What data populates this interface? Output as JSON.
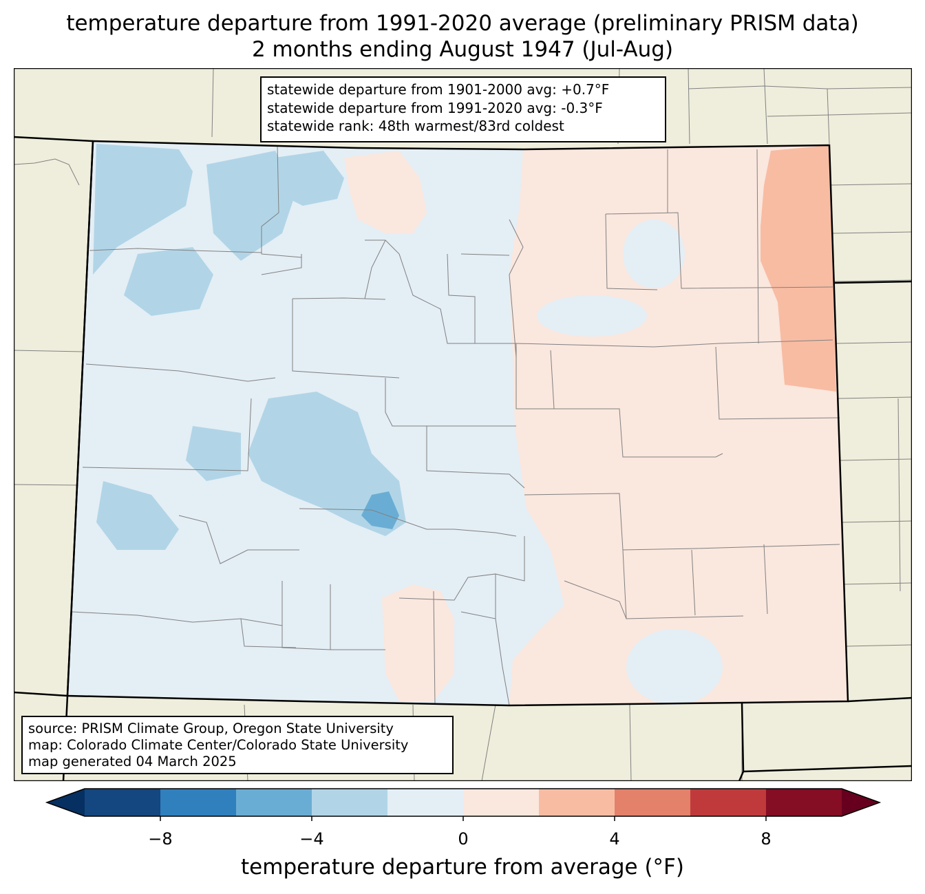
{
  "title_line1": "temperature departure from 1991-2020 average (preliminary PRISM data)",
  "title_line2": "2 months ending August 1947 (Jul-Aug)",
  "stats": {
    "line1": "statewide departure from 1901-2000 avg: +0.7°F",
    "line2": "statewide departure from 1991-2020 avg: -0.3°F",
    "line3": "statewide rank: 48th warmest/83rd coldest"
  },
  "source": {
    "line1": "source: PRISM Climate Group, Oregon State University",
    "line2": "map: Colorado Climate Center/Colorado State University",
    "line3": "map generated 04 March 2025"
  },
  "colorbar": {
    "label": "temperature departure from average (°F)",
    "ticks": [
      "−8",
      "−4",
      "0",
      "4",
      "8"
    ],
    "tick_values": [
      -8,
      -4,
      0,
      4,
      8
    ],
    "range": [
      -10,
      10
    ],
    "step": 2,
    "colors": [
      "#14467f",
      "#3080bd",
      "#6aadd4",
      "#b1d5e7",
      "#e4eef5",
      "#fae7de",
      "#f8bca3",
      "#e3816a",
      "#c03a3c",
      "#850d24"
    ],
    "under_color": "#053061",
    "over_color": "#67001f"
  },
  "map_colors": {
    "background": "#efeedc",
    "land_lines": "#808080",
    "state_border": "#000000"
  }
}
